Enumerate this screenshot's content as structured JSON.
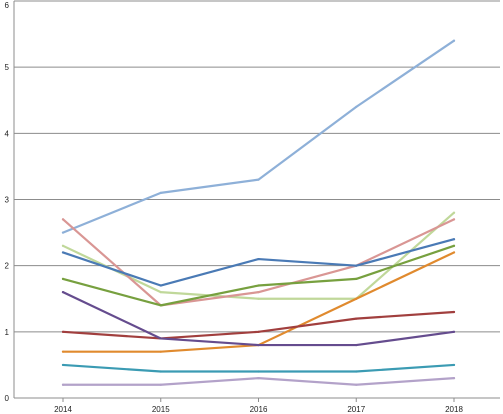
{
  "chart_data": {
    "type": "line",
    "title": "",
    "xlabel": "",
    "ylabel": "",
    "categories": [
      "2014",
      "2015",
      "2016",
      "2017",
      "2018"
    ],
    "ylim": [
      0,
      6
    ],
    "yticks": [
      "0",
      "1",
      "2",
      "3",
      "4",
      "5",
      "6"
    ],
    "grid": "horizontal",
    "legend": "none",
    "series": [
      {
        "color": "#8eb0d8",
        "values": [
          2.5,
          3.1,
          3.3,
          4.4,
          5.4
        ]
      },
      {
        "color": "#c0d89a",
        "values": [
          2.3,
          1.6,
          1.5,
          1.5,
          2.8
        ]
      },
      {
        "color": "#d99694",
        "values": [
          2.7,
          1.4,
          1.6,
          2.0,
          2.7
        ]
      },
      {
        "color": "#4a7ab5",
        "values": [
          2.2,
          1.7,
          2.1,
          2.0,
          2.4
        ]
      },
      {
        "color": "#77a03f",
        "values": [
          1.8,
          1.4,
          1.7,
          1.8,
          2.3
        ]
      },
      {
        "color": "#e08a2e",
        "values": [
          0.7,
          0.7,
          0.8,
          1.5,
          2.2
        ]
      },
      {
        "color": "#a13f3e",
        "values": [
          1.0,
          0.9,
          1.0,
          1.2,
          1.3
        ]
      },
      {
        "color": "#654c8e",
        "values": [
          1.6,
          0.9,
          0.8,
          0.8,
          1.0
        ]
      },
      {
        "color": "#3b9bb3",
        "values": [
          0.5,
          0.4,
          0.4,
          0.4,
          0.5
        ]
      },
      {
        "color": "#b3a2c9",
        "values": [
          0.2,
          0.2,
          0.3,
          0.2,
          0.3
        ]
      }
    ]
  }
}
